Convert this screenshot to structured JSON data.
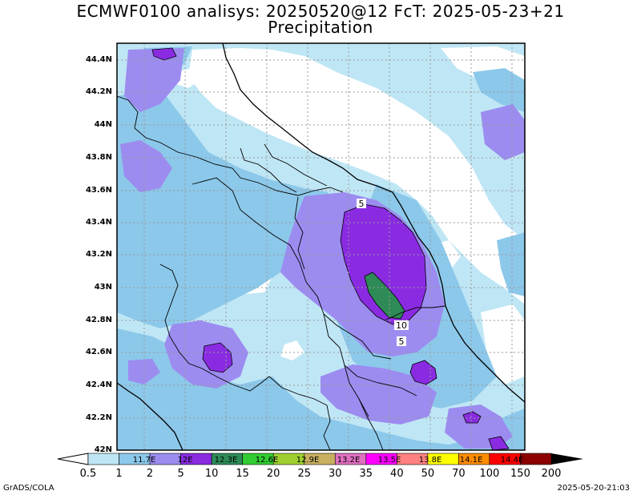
{
  "title_line1": "ECMWF0100 analisys: 20250520@12 FcT: 2025-05-23+21",
  "title_line2": "Precipitation",
  "y_ticks": [
    "44.4N",
    "44.2N",
    "44N",
    "43.8N",
    "43.6N",
    "43.4N",
    "43.2N",
    "43N",
    "42.8N",
    "42.6N",
    "42.4N",
    "42.2N",
    "42N"
  ],
  "lon_labels": [
    "11.7E",
    "12E",
    "12.3E",
    "12.6E",
    "12.9E",
    "13.2E",
    "13.5E",
    "13.8E",
    "14.1E",
    "14.4E"
  ],
  "contour_labels": [
    "5",
    "10",
    "5"
  ],
  "legend": {
    "values": [
      "0.5",
      "1",
      "2",
      "5",
      "10",
      "15",
      "20",
      "25",
      "30",
      "35",
      "40",
      "50",
      "70",
      "100",
      "150",
      "200"
    ],
    "colors": [
      "#ffffff",
      "#bfe6f5",
      "#8cc8ea",
      "#9c8cf0",
      "#8a2be2",
      "#2e8b57",
      "#32cd32",
      "#a0d030",
      "#c8b060",
      "#e070c0",
      "#ff00ff",
      "#ff8080",
      "#ffff00",
      "#ff8c00",
      "#ff0000",
      "#8b0000"
    ]
  },
  "footer_left": "GrADS/COLA",
  "footer_right": "2025-05-20-21:03"
}
